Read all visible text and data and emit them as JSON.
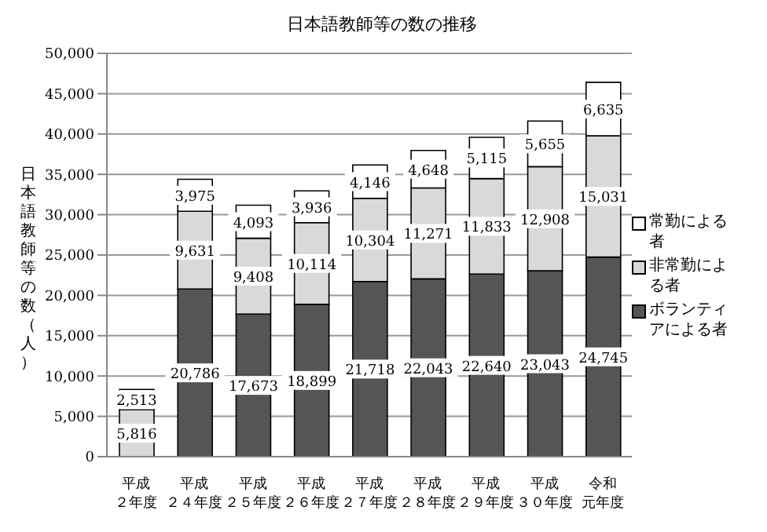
{
  "chart_data": {
    "type": "bar",
    "title": "日本語教師等の数の推移",
    "ylabel": "日本語教師等の数（人）",
    "categories": [
      "平成２年度",
      "平成２４年度",
      "平成２５年度",
      "平成２６年度",
      "平成２７年度",
      "平成２８年度",
      "平成２９年度",
      "平成３０年度",
      "令和元年度"
    ],
    "stacked": true,
    "grid": "y",
    "legend": "right",
    "ylim": [
      0,
      50000
    ],
    "yticks": [
      {
        "value": 0,
        "label": "0"
      },
      {
        "value": 5000,
        "label": "5,000"
      },
      {
        "value": 10000,
        "label": "10,000"
      },
      {
        "value": 15000,
        "label": "15,000"
      },
      {
        "value": 20000,
        "label": "20,000"
      },
      {
        "value": 25000,
        "label": "25,000"
      },
      {
        "value": 30000,
        "label": "30,000"
      },
      {
        "value": 35000,
        "label": "35,000"
      },
      {
        "value": 40000,
        "label": "40,000"
      },
      {
        "value": 45000,
        "label": "45,000"
      },
      {
        "value": 50000,
        "label": "50,000"
      }
    ],
    "series": [
      {
        "name": "ボランティアによる者",
        "color": "#555555",
        "values": [
          null,
          20786,
          17673,
          18899,
          21718,
          22043,
          22640,
          23043,
          24745
        ],
        "value_labels": [
          null,
          "20,786",
          "17,673",
          "18,899",
          "21,718",
          "22,043",
          "22,640",
          "23,043",
          "24,745"
        ]
      },
      {
        "name": "非常勤による者",
        "color": "#d9d9d9",
        "values": [
          5816,
          9631,
          9408,
          10114,
          10304,
          11271,
          11833,
          12908,
          15031
        ],
        "value_labels": [
          "5,816",
          "9,631",
          "9,408",
          "10,114",
          "10,304",
          "11,271",
          "11,833",
          "12,908",
          "15,031"
        ]
      },
      {
        "name": "常勤による者",
        "color": "#ffffff",
        "values": [
          2513,
          3975,
          4093,
          3936,
          4146,
          4648,
          5115,
          5655,
          6635
        ],
        "value_labels": [
          "2,513",
          "3,975",
          "4,093",
          "3,936",
          "4,146",
          "4,648",
          "5,115",
          "5,655",
          "6,635"
        ]
      }
    ]
  }
}
